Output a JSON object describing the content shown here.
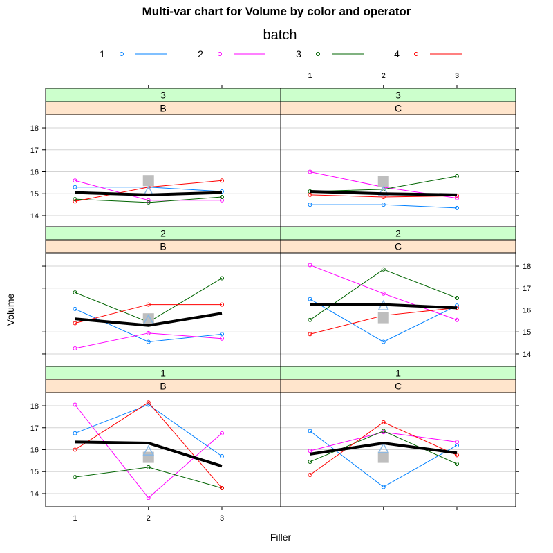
{
  "chart_data": {
    "type": "line",
    "title": "Multi-var chart for Volume by color and operator",
    "xlabel": "Filler",
    "ylabel": "Volume",
    "legend": {
      "title": "batch",
      "placement": "top",
      "entries": [
        {
          "label": "1",
          "color": "#0080ff"
        },
        {
          "label": "2",
          "color": "#ff00ff"
        },
        {
          "label": "3",
          "color": "#006400"
        },
        {
          "label": "4",
          "color": "#ff0000"
        }
      ]
    },
    "x": [
      1,
      2,
      3
    ],
    "x_tick_labels": [
      "1",
      "2",
      "3"
    ],
    "ylim": [
      13.4,
      18.6
    ],
    "y_ticks": [
      14,
      15,
      16,
      17,
      18
    ],
    "grid": true,
    "mean_line_color": "#000000",
    "mean_marker_color": "#bebebe",
    "median_marker_color": "#87b8e6",
    "panels": [
      {
        "color": "3",
        "operator": "B",
        "series": [
          {
            "name": "1",
            "values": [
              15.3,
              15.3,
              15.1
            ]
          },
          {
            "name": "2",
            "values": [
              15.6,
              14.7,
              14.7
            ]
          },
          {
            "name": "3",
            "values": [
              14.75,
              14.6,
              14.85
            ]
          },
          {
            "name": "4",
            "values": [
              14.65,
              15.3,
              15.6
            ]
          }
        ],
        "mean_line": [
          15.05,
          14.95,
          15.05
        ],
        "mean_marker": 15.6,
        "median_marker": 15.1
      },
      {
        "color": "3",
        "operator": "C",
        "series": [
          {
            "name": "1",
            "values": [
              14.5,
              14.5,
              14.35
            ]
          },
          {
            "name": "2",
            "values": [
              16.0,
              15.3,
              14.8
            ]
          },
          {
            "name": "3",
            "values": [
              15.1,
              15.2,
              15.8
            ]
          },
          {
            "name": "4",
            "values": [
              14.95,
              14.85,
              14.9
            ]
          }
        ],
        "mean_line": [
          15.1,
          15.0,
          14.95
        ],
        "mean_marker": 15.55,
        "median_marker": 15.1
      },
      {
        "color": "2",
        "operator": "B",
        "series": [
          {
            "name": "1",
            "values": [
              16.05,
              14.55,
              14.9
            ]
          },
          {
            "name": "2",
            "values": [
              14.25,
              14.95,
              14.7
            ]
          },
          {
            "name": "3",
            "values": [
              16.8,
              15.45,
              17.45
            ]
          },
          {
            "name": "4",
            "values": [
              15.4,
              16.25,
              16.25
            ]
          }
        ],
        "mean_line": [
          15.6,
          15.3,
          15.85
        ],
        "mean_marker": 15.6,
        "median_marker": 15.55
      },
      {
        "color": "2",
        "operator": "C",
        "series": [
          {
            "name": "1",
            "values": [
              16.5,
              14.55,
              16.2
            ]
          },
          {
            "name": "2",
            "values": [
              18.05,
              16.75,
              15.55
            ]
          },
          {
            "name": "3",
            "values": [
              15.55,
              17.85,
              16.55
            ]
          },
          {
            "name": "4",
            "values": [
              14.9,
              15.75,
              16.1
            ]
          }
        ],
        "mean_line": [
          16.25,
          16.25,
          16.1
        ],
        "mean_marker": 15.65,
        "median_marker": 16.2
      },
      {
        "color": "1",
        "operator": "B",
        "series": [
          {
            "name": "1",
            "values": [
              16.75,
              18.05,
              15.7
            ]
          },
          {
            "name": "2",
            "values": [
              18.05,
              13.8,
              16.75
            ]
          },
          {
            "name": "3",
            "values": [
              14.75,
              15.2,
              14.25
            ]
          },
          {
            "name": "4",
            "values": [
              16.0,
              18.15,
              14.25
            ]
          }
        ],
        "mean_line": [
          16.35,
          16.3,
          15.25
        ],
        "mean_marker": 15.65,
        "median_marker": 15.95
      },
      {
        "color": "1",
        "operator": "C",
        "series": [
          {
            "name": "1",
            "values": [
              16.85,
              14.3,
              16.2
            ]
          },
          {
            "name": "2",
            "values": [
              15.95,
              16.8,
              16.35
            ]
          },
          {
            "name": "3",
            "values": [
              15.45,
              16.85,
              15.35
            ]
          },
          {
            "name": "4",
            "values": [
              14.85,
              17.25,
              15.75
            ]
          }
        ],
        "mean_line": [
          15.8,
          16.3,
          15.85
        ],
        "mean_marker": 15.65,
        "median_marker": 16.05
      }
    ]
  }
}
